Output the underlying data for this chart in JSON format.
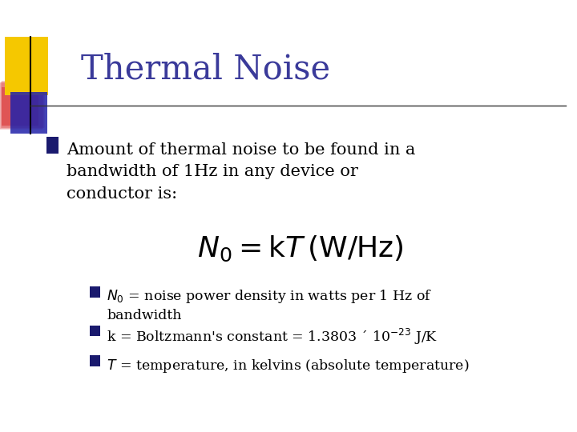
{
  "title": "Thermal Noise",
  "title_color": "#3A3A9A",
  "bg_color": "#FFFFFF",
  "bullet_color": "#1A1A6E",
  "bullet1_text": "Amount of thermal noise to be found in a\nbandwidth of 1Hz in any device or\nconductor is:",
  "formula": "$N_0 = \\mathrm{k}T\\,\\left(\\mathrm{W/Hz}\\right)$",
  "sub_bullets": [
    "$N_0$ = noise power density in watts per 1 Hz of\nbandwidth",
    "k = Boltzmann's constant = 1.3803 ´ 10$^{-23}$ J/K",
    "$T$ = temperature, in kelvins (absolute temperature)"
  ],
  "sq_yellow": "#F5C800",
  "sq_red": "#DD4444",
  "sq_blue": "#2222AA",
  "line_color": "#333333",
  "text_color": "#000000",
  "font_size_title": 30,
  "font_size_bullet1": 15,
  "font_size_formula": 26,
  "font_size_sub": 12.5
}
